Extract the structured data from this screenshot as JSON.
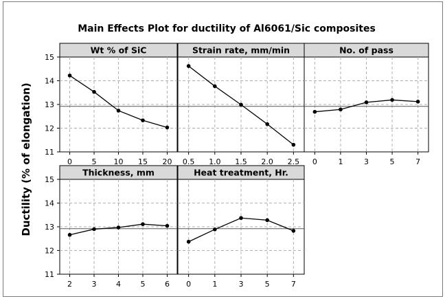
{
  "chart_data": {
    "type": "line",
    "title": "Main Effects Plot for ductility of Al6061/Sic composites",
    "ylabel": "Ductility (% of elongation)",
    "ylim": [
      11,
      15
    ],
    "yticks": [
      11,
      12,
      13,
      14,
      15
    ],
    "grid": true,
    "reference_line": 12.92,
    "colors": {
      "line": "#000000",
      "grid": "#b0b0b0",
      "header": "#d9d9d9",
      "ref": "#555555"
    },
    "panels": [
      {
        "title": "Wt % of SiC",
        "categories": [
          "0",
          "5",
          "10",
          "15",
          "20"
        ],
        "values": [
          14.22,
          13.53,
          12.74,
          12.33,
          12.03
        ]
      },
      {
        "title": "Strain rate, mm/min",
        "categories": [
          "0.5",
          "1.0",
          "1.5",
          "2.0",
          "2.5"
        ],
        "values": [
          14.62,
          13.77,
          12.99,
          12.17,
          11.3
        ]
      },
      {
        "title": "No. of pass",
        "categories": [
          "0",
          "1",
          "3",
          "5",
          "7"
        ],
        "values": [
          12.69,
          12.79,
          13.09,
          13.19,
          13.12
        ]
      },
      {
        "title": "Thickness, mm",
        "categories": [
          "2",
          "3",
          "4",
          "5",
          "6"
        ],
        "values": [
          12.66,
          12.9,
          12.97,
          13.11,
          13.04
        ]
      },
      {
        "title": "Heat treatment, Hr.",
        "categories": [
          "0",
          "1",
          "3",
          "5",
          "7"
        ],
        "values": [
          12.37,
          12.89,
          13.37,
          13.28,
          12.83
        ]
      }
    ]
  }
}
